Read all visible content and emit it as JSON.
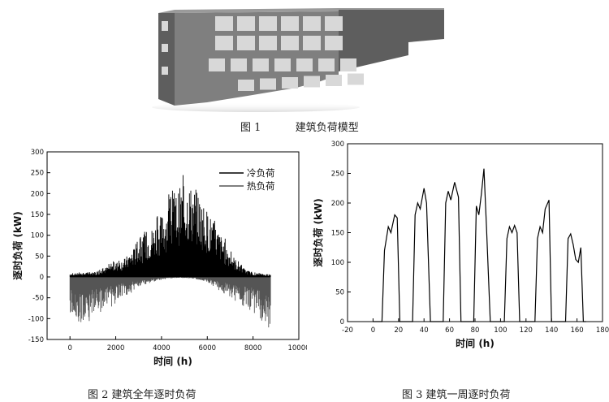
{
  "figure1": {
    "caption_num": "图 1",
    "caption_text": "建筑负荷模型",
    "colors": {
      "facade": "#7f7f7f",
      "side": "#5e5e5e",
      "top": "#9a9a9a",
      "window": "#d8d8d8"
    }
  },
  "chart_data": [
    {
      "type": "area",
      "caption": "图 2  建筑全年逐时负荷",
      "xlabel": "时间 (h)",
      "ylabel": "逐时负荷 (kW)",
      "xlim": [
        -1000,
        10000
      ],
      "ylim": [
        -150,
        300
      ],
      "xticks": [
        0,
        2000,
        4000,
        6000,
        8000,
        10000
      ],
      "yticks": [
        -150,
        -100,
        -50,
        0,
        50,
        100,
        150,
        200,
        250,
        300
      ],
      "legend_position": "top-right",
      "grid": false,
      "series": [
        {
          "name": "冷负荷",
          "color": "#000000",
          "x": [
            0,
            1200,
            1800,
            2400,
            2800,
            3200,
            3600,
            4000,
            4400,
            4800,
            5200,
            5600,
            6000,
            6400,
            6800,
            7200,
            7600,
            8000,
            8760
          ],
          "values": [
            8,
            12,
            30,
            45,
            70,
            95,
            120,
            150,
            185,
            215,
            225,
            200,
            160,
            120,
            80,
            45,
            20,
            10,
            5
          ]
        },
        {
          "name": "热负荷",
          "color": "#555555",
          "x": [
            0,
            400,
            800,
            1200,
            1600,
            2000,
            2400,
            2800,
            3200,
            3600,
            4000,
            4400,
            4800,
            5200,
            5600,
            6000,
            6400,
            6800,
            7200,
            7600,
            8000,
            8400,
            8760
          ],
          "values": [
            -85,
            -105,
            -95,
            -80,
            -70,
            -55,
            -40,
            -30,
            -20,
            -12,
            -6,
            -3,
            -2,
            -3,
            -6,
            -12,
            -25,
            -40,
            -55,
            -65,
            -75,
            -95,
            -115
          ]
        }
      ]
    },
    {
      "type": "line",
      "caption": "图 3  建筑一周逐时负荷",
      "xlabel": "时间 (h)",
      "ylabel": "逐时负荷 (kW)",
      "xlim": [
        -20,
        180
      ],
      "ylim": [
        0,
        300
      ],
      "xticks": [
        -20,
        0,
        20,
        40,
        60,
        80,
        100,
        120,
        140,
        160,
        180
      ],
      "yticks": [
        0,
        50,
        100,
        150,
        200,
        250,
        300
      ],
      "grid": false,
      "series": [
        {
          "color": "#000000",
          "x": [
            0,
            7,
            9,
            12,
            14,
            17,
            19,
            21,
            31,
            33,
            35,
            37,
            40,
            42,
            45,
            55,
            57,
            59,
            61,
            64,
            67,
            69,
            79,
            81,
            83,
            85,
            87,
            89,
            92,
            103,
            105,
            107,
            109,
            111,
            113,
            115,
            127,
            129,
            131,
            133,
            135,
            138,
            140,
            151,
            153,
            155,
            157,
            159,
            161,
            163,
            165,
            167
          ],
          "values": [
            0,
            0,
            120,
            160,
            150,
            180,
            175,
            0,
            0,
            180,
            200,
            190,
            225,
            200,
            0,
            0,
            200,
            220,
            205,
            235,
            210,
            0,
            0,
            195,
            180,
            215,
            258,
            160,
            0,
            0,
            140,
            160,
            150,
            162,
            150,
            0,
            0,
            140,
            160,
            150,
            190,
            205,
            0,
            0,
            140,
            148,
            130,
            105,
            100,
            125,
            0,
            0
          ]
        }
      ]
    }
  ]
}
